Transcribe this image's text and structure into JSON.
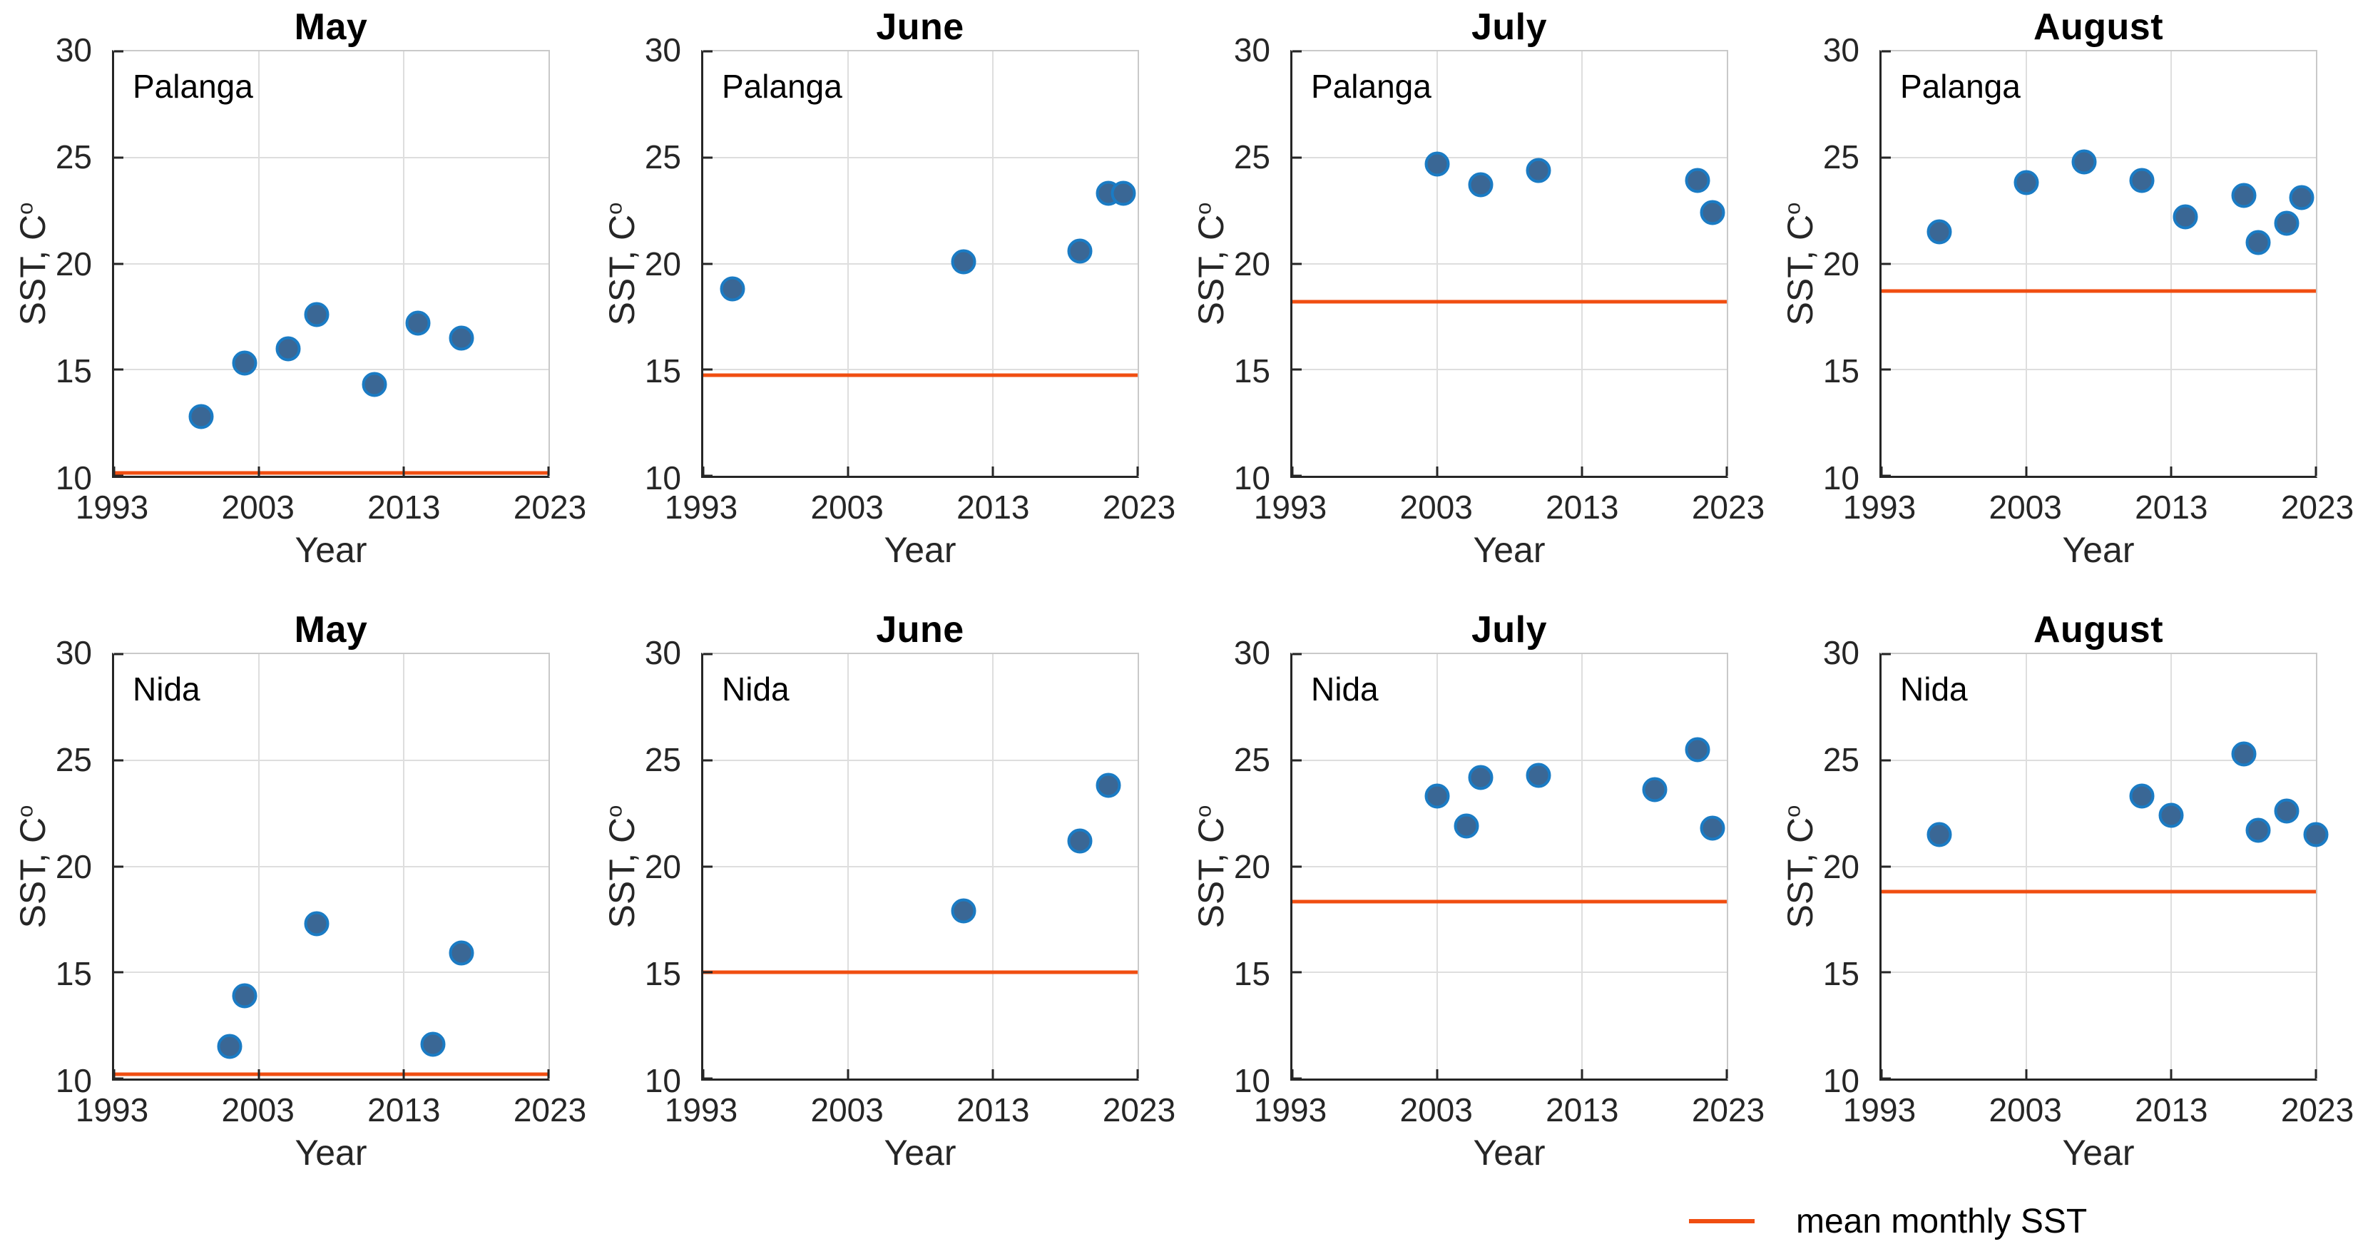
{
  "figure": {
    "ylabel_base": "SST, C",
    "ylabel_sup": "o",
    "xlabel": "Year",
    "legend_label": "mean monthly SST"
  },
  "colors": {
    "marker_fill": "#3a6795",
    "marker_edge": "#1a7bc4",
    "mean_line": "#f04e11",
    "gridline": "#dedede",
    "axis_dark": "#262626",
    "box_light": "#c9c9c9"
  },
  "chart_data": {
    "type": "scatter",
    "layout": "2 rows x 4 columns; top row station Palanga, bottom row station Nida; columns May, June, July, August",
    "xlabel": "Year",
    "ylabel": "SST, C°",
    "xlim": [
      1993,
      2023
    ],
    "ylim": [
      10,
      30
    ],
    "x_ticks": [
      1993,
      2003,
      2013,
      2023
    ],
    "y_ticks": [
      10,
      15,
      20,
      25,
      30
    ],
    "x_gridlines": [
      2003,
      2013
    ],
    "y_gridlines": [
      15,
      20,
      25
    ],
    "grid": true,
    "legend": {
      "label": "mean monthly SST",
      "position": "bottom-right",
      "color": "#f04e11"
    },
    "subplots": [
      {
        "title": "May",
        "station": "Palanga",
        "points": [
          [
            1999,
            12.8
          ],
          [
            2002,
            15.3
          ],
          [
            2005,
            16.0
          ],
          [
            2007,
            17.6
          ],
          [
            2011,
            14.3
          ],
          [
            2014,
            17.2
          ],
          [
            2017,
            16.5
          ]
        ],
        "mean_monthly_sst": 10.15
      },
      {
        "title": "June",
        "station": "Palanga",
        "points": [
          [
            1995,
            18.8
          ],
          [
            2011,
            20.1
          ],
          [
            2019,
            20.6
          ],
          [
            2021,
            23.3
          ],
          [
            2022,
            23.3
          ]
        ],
        "mean_monthly_sst": 14.75
      },
      {
        "title": "July",
        "station": "Palanga",
        "points": [
          [
            2003,
            24.7
          ],
          [
            2006,
            23.7
          ],
          [
            2010,
            24.4
          ],
          [
            2021,
            23.9
          ],
          [
            2022,
            22.4
          ]
        ],
        "mean_monthly_sst": 18.2
      },
      {
        "title": "August",
        "station": "Palanga",
        "points": [
          [
            1997,
            21.5
          ],
          [
            2003,
            23.8
          ],
          [
            2007,
            24.8
          ],
          [
            2011,
            23.9
          ],
          [
            2014,
            22.2
          ],
          [
            2018,
            23.2
          ],
          [
            2019,
            21.0
          ],
          [
            2021,
            21.9
          ],
          [
            2022,
            23.1
          ]
        ],
        "mean_monthly_sst": 18.7
      },
      {
        "title": "May",
        "station": "Nida",
        "points": [
          [
            2001,
            11.5
          ],
          [
            2002,
            13.9
          ],
          [
            2007,
            17.3
          ],
          [
            2015,
            11.6
          ],
          [
            2017,
            15.9
          ]
        ],
        "mean_monthly_sst": 10.2
      },
      {
        "title": "June",
        "station": "Nida",
        "points": [
          [
            2011,
            17.9
          ],
          [
            2019,
            21.2
          ],
          [
            2021,
            23.8
          ]
        ],
        "mean_monthly_sst": 15.0
      },
      {
        "title": "July",
        "station": "Nida",
        "points": [
          [
            2003,
            23.3
          ],
          [
            2005,
            21.9
          ],
          [
            2006,
            24.2
          ],
          [
            2010,
            24.3
          ],
          [
            2018,
            23.6
          ],
          [
            2021,
            25.5
          ],
          [
            2022,
            21.8
          ]
        ],
        "mean_monthly_sst": 18.35
      },
      {
        "title": "August",
        "station": "Nida",
        "points": [
          [
            1997,
            21.5
          ],
          [
            2011,
            23.3
          ],
          [
            2013,
            22.4
          ],
          [
            2018,
            25.3
          ],
          [
            2019,
            21.7
          ],
          [
            2021,
            22.6
          ],
          [
            2023,
            21.5
          ]
        ],
        "mean_monthly_sst": 18.8
      }
    ]
  }
}
